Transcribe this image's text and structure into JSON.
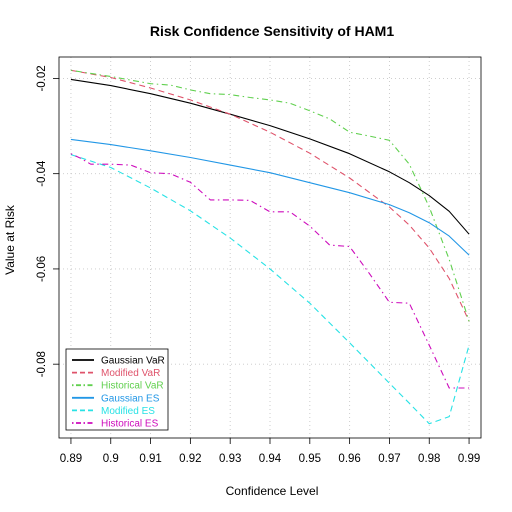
{
  "chart_data": {
    "type": "line",
    "title": "Risk Confidence Sensitivity of HAM1",
    "xlabel": "Confidence Level",
    "ylabel": "Value at Risk",
    "xlim": [
      0.887,
      0.993
    ],
    "ylim": [
      -0.0955,
      -0.0155
    ],
    "xticks": [
      0.89,
      0.9,
      0.91,
      0.92,
      0.93,
      0.94,
      0.95,
      0.96,
      0.97,
      0.98,
      0.99
    ],
    "xtick_labels": [
      "0.89",
      "0.9",
      "0.91",
      "0.92",
      "0.93",
      "0.94",
      "0.95",
      "0.96",
      "0.97",
      "0.98",
      "0.99"
    ],
    "yticks": [
      -0.02,
      -0.04,
      -0.06,
      -0.08
    ],
    "ytick_labels": [
      "-0.02",
      "-0.04",
      "-0.06",
      "-0.08"
    ],
    "grid": true,
    "legend_position": "bottom-left",
    "series": [
      {
        "name": "Gaussian VaR",
        "color": "#000000",
        "dash": "solid",
        "x": [
          0.89,
          0.9,
          0.91,
          0.92,
          0.93,
          0.94,
          0.95,
          0.96,
          0.97,
          0.975,
          0.98,
          0.985,
          0.99
        ],
        "y": [
          -0.0202,
          -0.0215,
          -0.0232,
          -0.0252,
          -0.0275,
          -0.0299,
          -0.0327,
          -0.0358,
          -0.0396,
          -0.0419,
          -0.0446,
          -0.0479,
          -0.0527
        ]
      },
      {
        "name": "Modified VaR",
        "color": "#DF536B",
        "dash": "dashed",
        "x": [
          0.89,
          0.9,
          0.91,
          0.92,
          0.93,
          0.94,
          0.95,
          0.96,
          0.97,
          0.975,
          0.98,
          0.985,
          0.99
        ],
        "y": [
          -0.0183,
          -0.0198,
          -0.022,
          -0.0245,
          -0.0275,
          -0.0313,
          -0.0357,
          -0.0409,
          -0.047,
          -0.0508,
          -0.0556,
          -0.062,
          -0.071
        ]
      },
      {
        "name": "Historical VaR",
        "color": "#61D04F",
        "dash": "dotdash",
        "x": [
          0.89,
          0.9,
          0.91,
          0.915,
          0.92,
          0.925,
          0.93,
          0.935,
          0.94,
          0.945,
          0.95,
          0.955,
          0.96,
          0.965,
          0.97,
          0.975,
          0.98,
          0.985,
          0.99
        ],
        "y": [
          -0.0183,
          -0.0196,
          -0.0211,
          -0.0214,
          -0.0224,
          -0.0232,
          -0.0234,
          -0.024,
          -0.0245,
          -0.0252,
          -0.0268,
          -0.0285,
          -0.0313,
          -0.0321,
          -0.033,
          -0.038,
          -0.047,
          -0.058,
          -0.071
        ]
      },
      {
        "name": "Gaussian ES",
        "color": "#2297E6",
        "dash": "solid",
        "x": [
          0.89,
          0.9,
          0.91,
          0.92,
          0.93,
          0.94,
          0.95,
          0.96,
          0.97,
          0.975,
          0.98,
          0.985,
          0.99
        ],
        "y": [
          -0.0328,
          -0.0339,
          -0.0352,
          -0.0366,
          -0.0382,
          -0.0398,
          -0.0419,
          -0.044,
          -0.0465,
          -0.0482,
          -0.0503,
          -0.0531,
          -0.0571
        ]
      },
      {
        "name": "Modified ES",
        "color": "#28E2E5",
        "dash": "dashed",
        "x": [
          0.89,
          0.9,
          0.91,
          0.92,
          0.93,
          0.94,
          0.95,
          0.96,
          0.97,
          0.975,
          0.98,
          0.985,
          0.99
        ],
        "y": [
          -0.036,
          -0.0387,
          -0.043,
          -0.0478,
          -0.0535,
          -0.06,
          -0.0672,
          -0.0755,
          -0.084,
          -0.0882,
          -0.0925,
          -0.091,
          -0.076
        ]
      },
      {
        "name": "Historical ES",
        "color": "#CD0BBC",
        "dash": "dotdash",
        "x": [
          0.89,
          0.8925,
          0.895,
          0.9,
          0.905,
          0.91,
          0.915,
          0.92,
          0.925,
          0.93,
          0.935,
          0.94,
          0.945,
          0.95,
          0.955,
          0.96,
          0.965,
          0.97,
          0.975,
          0.98,
          0.985,
          0.99
        ],
        "y": [
          -0.0358,
          -0.0368,
          -0.038,
          -0.038,
          -0.0382,
          -0.0398,
          -0.04,
          -0.0418,
          -0.0455,
          -0.0455,
          -0.0456,
          -0.048,
          -0.048,
          -0.051,
          -0.055,
          -0.0553,
          -0.061,
          -0.067,
          -0.0672,
          -0.076,
          -0.085,
          -0.085
        ]
      }
    ]
  }
}
